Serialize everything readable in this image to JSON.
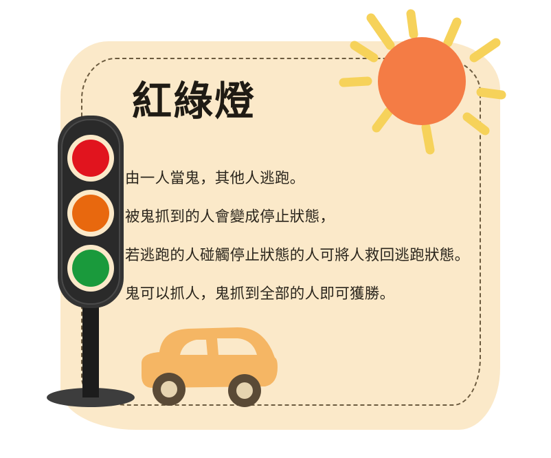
{
  "card": {
    "title": "紅綠燈",
    "rules": [
      "由一人當鬼，其他人逃跑。",
      "被鬼抓到的人會變成停止狀態，",
      "若逃跑的人碰觸停止狀態的人可將人救回逃跑狀態。",
      "鬼可以抓人，鬼抓到全部的人即可獲勝。"
    ]
  },
  "colors": {
    "card_background": "#fbe9c9",
    "sun": "#f47c45",
    "sun_rays": "#f6d25a",
    "red_light": "#e1141e",
    "orange_light": "#e8680e",
    "green_light": "#1a9a3c",
    "car": "#f5b664"
  },
  "illustrations": [
    "sun-icon",
    "traffic-light-icon",
    "car-icon"
  ]
}
